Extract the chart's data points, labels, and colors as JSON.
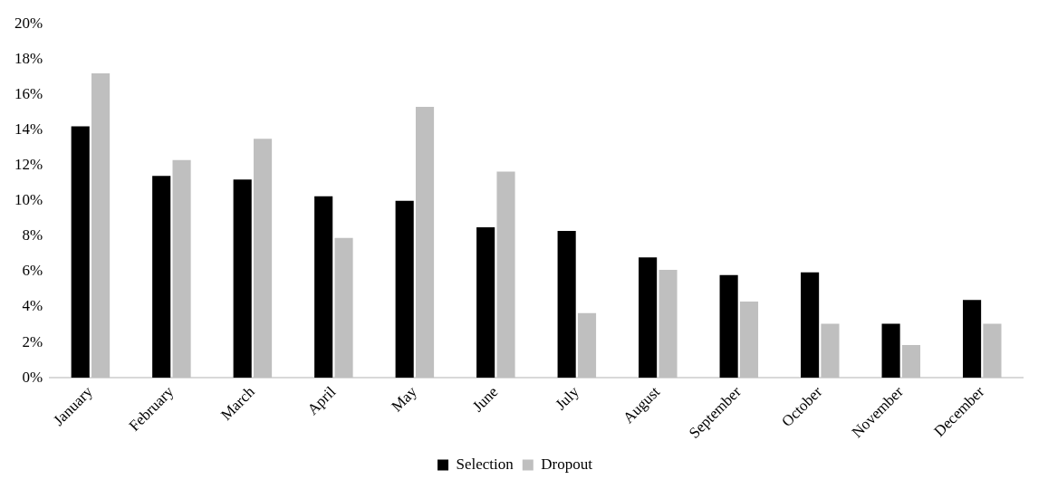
{
  "chart_data": {
    "type": "bar",
    "categories": [
      "January",
      "February",
      "March",
      "April",
      "May",
      "June",
      "July",
      "August",
      "September",
      "October",
      "November",
      "December"
    ],
    "series": [
      {
        "name": "Selection",
        "color": "#000000",
        "values": [
          14.2,
          11.4,
          11.2,
          10.25,
          10.0,
          8.5,
          8.3,
          6.8,
          5.8,
          5.95,
          3.05,
          4.4
        ]
      },
      {
        "name": "Dropout",
        "color": "#bfbfbf",
        "values": [
          17.2,
          12.3,
          13.5,
          7.9,
          15.3,
          11.65,
          3.65,
          6.1,
          4.3,
          3.05,
          1.85,
          3.05
        ]
      }
    ],
    "ylim": [
      0,
      20
    ],
    "yticks": [
      {
        "value": 0,
        "label": "0%"
      },
      {
        "value": 2,
        "label": "2%"
      },
      {
        "value": 4,
        "label": "4%"
      },
      {
        "value": 6,
        "label": "6%"
      },
      {
        "value": 8,
        "label": "8%"
      },
      {
        "value": 10,
        "label": "10%"
      },
      {
        "value": 12,
        "label": "12%"
      },
      {
        "value": 14,
        "label": "14%"
      },
      {
        "value": 16,
        "label": "16%"
      },
      {
        "value": 18,
        "label": "18%"
      },
      {
        "value": 20,
        "label": "20%"
      }
    ],
    "grid": false,
    "legend": "bottom"
  }
}
